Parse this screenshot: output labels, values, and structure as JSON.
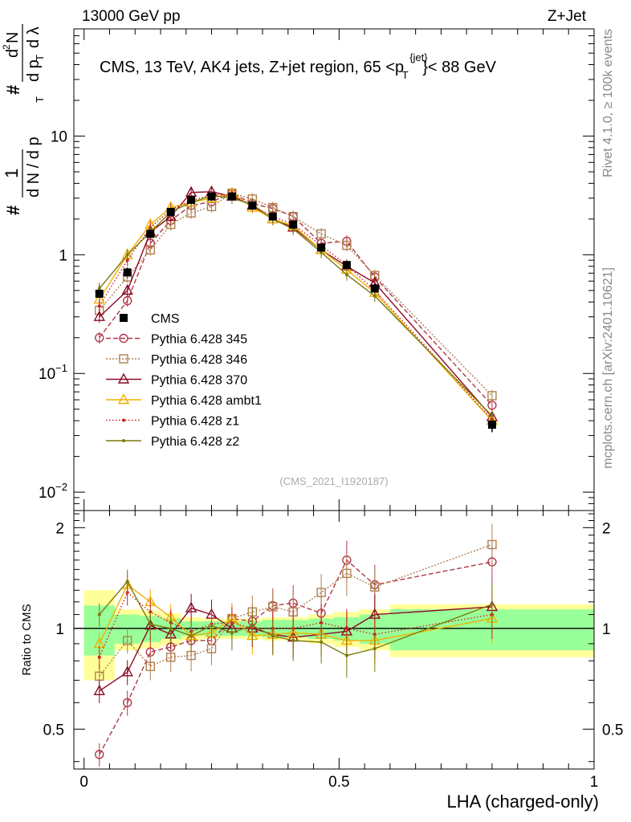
{
  "header": {
    "left": "13000 GeV pp",
    "right": "Z+Jet"
  },
  "side_labels": {
    "rivet": "Rivet 4.1.0, ≥ 100k events",
    "mcplots": "mcplots.cern.ch [arXiv:2401.10621]"
  },
  "chart_data": [
    {
      "type": "line",
      "panel": "main",
      "title": "CMS, 13 TeV, AK4 jets, Z+jet region, 65 <p",
      "title_sup": "{jet}",
      "title_sub": "T",
      "title_end": "}< 88 GeV",
      "analysis_id": "(CMS_2021_I1920187)",
      "ylabel_parts": [
        "#",
        "1",
        "d N / d p",
        "T",
        "#",
        "d p",
        "T",
        "d",
        "2",
        "N",
        "d λ"
      ],
      "yscale": "log",
      "ylim": [
        0.007,
        80
      ],
      "xlim": [
        -0.02,
        1.0
      ],
      "yticks": [
        {
          "v": 0.01,
          "base": "10",
          "exp": "−2"
        },
        {
          "v": 0.1,
          "base": "10",
          "exp": "−1"
        },
        {
          "v": 1,
          "base": "1",
          "exp": ""
        },
        {
          "v": 10,
          "base": "10",
          "exp": ""
        }
      ],
      "x": [
        0.03,
        0.085,
        0.13,
        0.17,
        0.21,
        0.25,
        0.29,
        0.33,
        0.37,
        0.41,
        0.465,
        0.515,
        0.57,
        0.8
      ],
      "data": {
        "name": "CMS",
        "values": [
          0.47,
          0.71,
          1.5,
          2.3,
          2.9,
          3.1,
          3.1,
          2.6,
          2.1,
          1.8,
          1.15,
          0.82,
          0.52,
          0.037
        ],
        "err": [
          0.08,
          0.07,
          0.14,
          0.15,
          0.15,
          0.15,
          0.15,
          0.13,
          0.12,
          0.1,
          0.08,
          0.07,
          0.05,
          0.005
        ]
      },
      "series": [
        {
          "name": "Pythia 6.428 345",
          "color": "#b0384a",
          "marker": "circle",
          "dash": "6,3",
          "values": [
            0.2,
            0.41,
            1.25,
            1.95,
            2.6,
            2.8,
            3.3,
            2.7,
            2.45,
            2.1,
            1.25,
            1.3,
            0.65,
            0.054
          ]
        },
        {
          "name": "Pythia 6.428 346",
          "color": "#b08050",
          "marker": "square",
          "dash": "2,2",
          "values": [
            0.34,
            0.65,
            1.1,
            1.8,
            2.25,
            2.55,
            3.3,
            2.95,
            2.5,
            2.1,
            1.5,
            1.2,
            0.67,
            0.065
          ]
        },
        {
          "name": "Pythia 6.428 370",
          "color": "#8b0a24",
          "marker": "triangle",
          "dash": "",
          "values": [
            0.3,
            0.5,
            1.55,
            2.1,
            3.35,
            3.4,
            3.1,
            2.6,
            2.0,
            1.7,
            1.1,
            0.8,
            0.58,
            0.043
          ]
        },
        {
          "name": "Pythia 6.428 ambt1",
          "color": "#f0b000",
          "marker": "triangle",
          "dash": "",
          "values": [
            0.42,
            1.0,
            1.8,
            2.5,
            2.75,
            3.0,
            3.3,
            2.5,
            2.0,
            1.75,
            1.1,
            0.75,
            0.48,
            0.04
          ]
        },
        {
          "name": "Pythia 6.428 z1",
          "color": "#d02020",
          "marker": "dot",
          "dash": "1.5,2.5",
          "values": [
            0.37,
            0.9,
            1.7,
            2.4,
            2.85,
            3.2,
            3.2,
            2.6,
            2.1,
            1.8,
            1.2,
            0.82,
            0.5,
            0.041
          ]
        },
        {
          "name": "Pythia 6.428 z2",
          "color": "#7a7a10",
          "marker": "dot",
          "dash": "",
          "values": [
            0.52,
            1.0,
            1.55,
            2.3,
            2.75,
            3.15,
            3.0,
            2.65,
            2.0,
            1.65,
            1.05,
            0.68,
            0.45,
            0.044
          ]
        }
      ]
    },
    {
      "type": "line",
      "panel": "ratio",
      "ylabel": "Ratio to CMS",
      "ylim": [
        0.38,
        2.25
      ],
      "xlim": [
        -0.02,
        1.0
      ],
      "yticks": [
        0.5,
        1,
        2
      ],
      "xticks": [
        0,
        0.5,
        1
      ],
      "xlabel": "LHA (charged-only)",
      "band_edges": [
        0.0,
        0.06,
        0.11,
        0.15,
        0.19,
        0.23,
        0.27,
        0.31,
        0.35,
        0.39,
        0.44,
        0.49,
        0.54,
        0.6,
        1.0
      ],
      "band_stat": [
        0.17,
        0.1,
        0.09,
        0.07,
        0.05,
        0.05,
        0.05,
        0.05,
        0.06,
        0.06,
        0.07,
        0.08,
        0.1,
        0.14
      ],
      "band_total": [
        0.3,
        0.14,
        0.13,
        0.11,
        0.08,
        0.07,
        0.07,
        0.07,
        0.08,
        0.08,
        0.1,
        0.12,
        0.14,
        0.18
      ],
      "x": [
        0.03,
        0.085,
        0.13,
        0.17,
        0.21,
        0.25,
        0.29,
        0.33,
        0.37,
        0.41,
        0.465,
        0.515,
        0.57,
        0.8
      ],
      "series": [
        {
          "name": "Pythia 6.428 345",
          "values": [
            0.42,
            0.6,
            0.85,
            0.88,
            0.92,
            0.92,
            1.07,
            1.05,
            1.17,
            1.19,
            1.11,
            1.6,
            1.35,
            1.58
          ]
        },
        {
          "name": "Pythia 6.428 346",
          "values": [
            0.72,
            0.92,
            0.77,
            0.82,
            0.83,
            0.87,
            1.07,
            1.12,
            1.16,
            1.12,
            1.28,
            1.46,
            1.33,
            1.78
          ]
        },
        {
          "name": "Pythia 6.428 370",
          "values": [
            0.65,
            0.74,
            1.02,
            0.96,
            1.15,
            1.1,
            1.0,
            1.0,
            0.96,
            0.94,
            0.96,
            0.98,
            1.1,
            1.16
          ]
        },
        {
          "name": "Pythia 6.428 ambt1",
          "values": [
            0.9,
            1.35,
            1.2,
            1.08,
            0.95,
            0.97,
            1.07,
            0.95,
            0.96,
            0.97,
            0.96,
            0.92,
            0.92,
            1.07
          ]
        },
        {
          "name": "Pythia 6.428 z1",
          "values": [
            0.82,
            1.28,
            1.12,
            1.04,
            0.98,
            1.03,
            1.04,
            1.0,
            1.0,
            1.0,
            1.04,
            1.0,
            0.96,
            1.1
          ]
        },
        {
          "name": "Pythia 6.428 z2",
          "values": [
            1.1,
            1.38,
            1.03,
            1.0,
            0.95,
            1.02,
            0.97,
            1.02,
            0.95,
            0.92,
            0.91,
            0.83,
            0.87,
            1.18
          ]
        }
      ]
    }
  ]
}
